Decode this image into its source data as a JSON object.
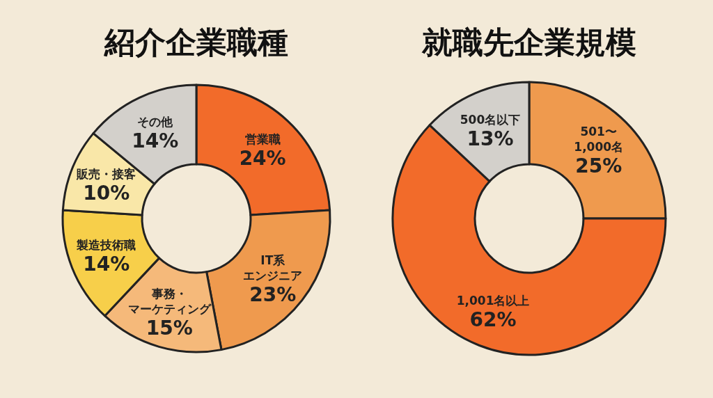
{
  "chart_data": [
    {
      "type": "donut",
      "title": "紹介企業職種",
      "categories": [
        "営業職",
        "IT系エンジニア",
        "事務・マーケティング",
        "製造技術職",
        "販売・接客",
        "その他"
      ],
      "values": [
        24,
        23,
        15,
        14,
        10,
        14
      ],
      "value_labels": [
        "24%",
        "23%",
        "15%",
        "14%",
        "10%",
        "14%"
      ],
      "colors": [
        "#f26b2a",
        "#ef9a4e",
        "#f5b97a",
        "#f7cf4a",
        "#f9e7a8",
        "#d3d0cb"
      ]
    },
    {
      "type": "donut",
      "title": "就職先企業規模",
      "categories": [
        "501〜1,000名",
        "1,001名以上",
        "500名以下"
      ],
      "values": [
        25,
        62,
        13
      ],
      "value_labels": [
        "25%",
        "62%",
        "13%"
      ],
      "colors": [
        "#ef9a4e",
        "#f26b2a",
        "#d3d0cb"
      ]
    }
  ]
}
